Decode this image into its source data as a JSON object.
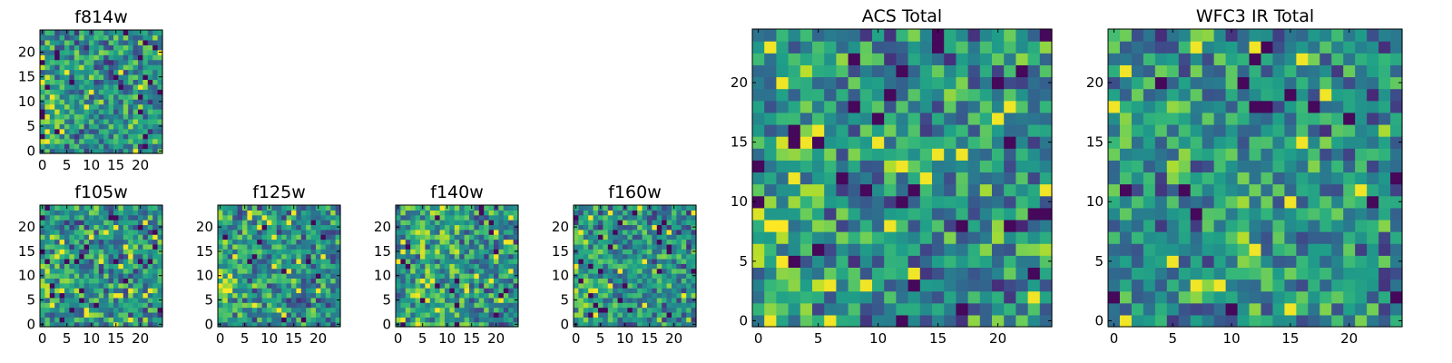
{
  "chart_data": [
    {
      "type": "heatmap",
      "title": "f814w",
      "xlim": [
        0,
        24
      ],
      "ylim": [
        0,
        24
      ],
      "xticks": [
        "0",
        "5",
        "10",
        "15",
        "20"
      ],
      "yticks": [
        "0",
        "5",
        "10",
        "15",
        "20"
      ],
      "cmap": "viridis",
      "grid": "off",
      "legend": "none",
      "seed": 11,
      "bias": "left"
    },
    {
      "type": "heatmap",
      "title": "f105w",
      "xlim": [
        0,
        24
      ],
      "ylim": [
        0,
        24
      ],
      "xticks": [
        "0",
        "5",
        "10",
        "15",
        "20"
      ],
      "yticks": [
        "0",
        "5",
        "10",
        "15",
        "20"
      ],
      "cmap": "viridis",
      "grid": "off",
      "legend": "none",
      "seed": 23,
      "bias": "left"
    },
    {
      "type": "heatmap",
      "title": "f125w",
      "xlim": [
        0,
        24
      ],
      "ylim": [
        0,
        24
      ],
      "xticks": [
        "0",
        "5",
        "10",
        "15",
        "20"
      ],
      "yticks": [
        "0",
        "5",
        "10",
        "15",
        "20"
      ],
      "cmap": "viridis",
      "grid": "off",
      "legend": "none",
      "seed": 37,
      "bias": "left"
    },
    {
      "type": "heatmap",
      "title": "f140w",
      "xlim": [
        0,
        24
      ],
      "ylim": [
        0,
        24
      ],
      "xticks": [
        "0",
        "5",
        "10",
        "15",
        "20"
      ],
      "yticks": [
        "0",
        "5",
        "10",
        "15",
        "20"
      ],
      "cmap": "viridis",
      "grid": "off",
      "legend": "none",
      "seed": 41,
      "bias": "center"
    },
    {
      "type": "heatmap",
      "title": "f160w",
      "xlim": [
        0,
        24
      ],
      "ylim": [
        0,
        24
      ],
      "xticks": [
        "0",
        "5",
        "10",
        "15",
        "20"
      ],
      "yticks": [
        "0",
        "5",
        "10",
        "15",
        "20"
      ],
      "cmap": "viridis",
      "grid": "off",
      "legend": "none",
      "seed": 53,
      "bias": "left"
    },
    {
      "type": "heatmap",
      "title": "ACS Total",
      "xlim": [
        0,
        24
      ],
      "ylim": [
        0,
        24
      ],
      "xticks": [
        "0",
        "5",
        "10",
        "15",
        "20"
      ],
      "yticks": [
        "0",
        "5",
        "10",
        "15",
        "20"
      ],
      "cmap": "viridis",
      "grid": "off",
      "legend": "none",
      "seed": 67,
      "bias": "left"
    },
    {
      "type": "heatmap",
      "title": "WFC3 IR Total",
      "xlim": [
        0,
        24
      ],
      "ylim": [
        0,
        24
      ],
      "xticks": [
        "0",
        "5",
        "10",
        "15",
        "20"
      ],
      "yticks": [
        "0",
        "5",
        "10",
        "15",
        "20"
      ],
      "cmap": "viridis",
      "grid": "off",
      "legend": "none",
      "seed": 79,
      "bias": "none"
    }
  ]
}
